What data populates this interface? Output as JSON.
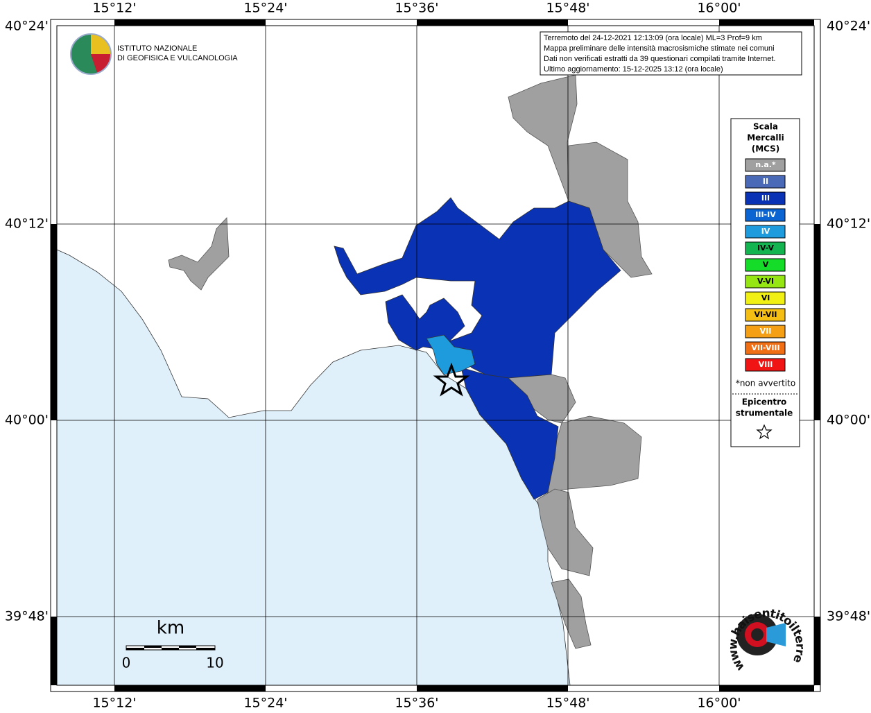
{
  "map": {
    "lon_labels": [
      "15°12'",
      "15°24'",
      "15°36'",
      "15°48'",
      "16°00'"
    ],
    "lat_labels": [
      "40°24'",
      "40°12'",
      "40°00'",
      "39°48'"
    ],
    "logo": [
      "ISTITUTO NAZIONALE",
      "DI GEOFISICA E VULCANOLOGIA"
    ],
    "info": [
      "Terremoto del 24-12-2021 12:13:09 (ora locale) ML=3 Prof=9 km",
      "Mappa preliminare delle intensità macrosismiche stimate nei comuni",
      "Dati non verificati estratti da 39 questionari compilati tramite Internet.",
      "Ultimo aggiornamento: 15-12-2025 13:12 (ora locale)"
    ],
    "legend": {
      "title": [
        "Scala",
        "Mercalli",
        "(MCS)"
      ],
      "items": [
        {
          "label": "n.a.*",
          "color": "#a0a0a0"
        },
        {
          "label": "II",
          "color": "#4a6ab8"
        },
        {
          "label": "III",
          "color": "#0a32b4"
        },
        {
          "label": "III-IV",
          "color": "#0a64d2"
        },
        {
          "label": "IV",
          "color": "#1e9bdc"
        },
        {
          "label": "IV-V",
          "color": "#14b450"
        },
        {
          "label": "V",
          "color": "#14dc28"
        },
        {
          "label": "V-VI",
          "color": "#96e614"
        },
        {
          "label": "VI",
          "color": "#f0f014"
        },
        {
          "label": "VI-VII",
          "color": "#f5be14"
        },
        {
          "label": "VII",
          "color": "#f5a014"
        },
        {
          "label": "VII-VIII",
          "color": "#f06e14"
        },
        {
          "label": "VIII",
          "color": "#f01414"
        }
      ],
      "note": "*non avvertito",
      "epicenter": [
        "Epicentro",
        "strumentale"
      ]
    },
    "scale": {
      "unit": "km",
      "labels": [
        "0",
        "10"
      ]
    },
    "watermark": "www.haisentitoilterremoto.it"
  }
}
